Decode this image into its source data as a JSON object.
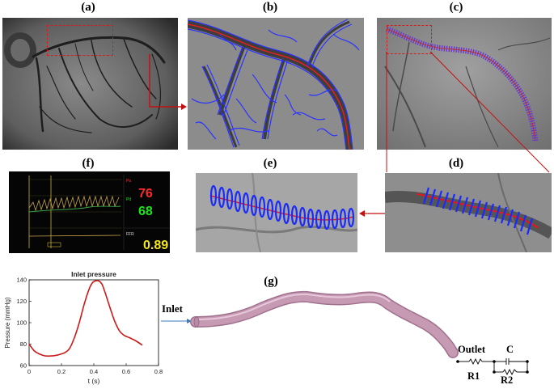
{
  "panels": {
    "a": "(a)",
    "b": "(b)",
    "c": "(c)",
    "d": "(d)",
    "e": "(e)",
    "f": "(f)",
    "g": "(g)"
  },
  "monitor": {
    "pa_label": "Pa",
    "pa_value": "76",
    "pd_label": "Pd",
    "pd_value": "68",
    "ffr_label": "FFR",
    "ffr_value": "0.89",
    "pa_color": "#ff2a2a",
    "pd_color": "#19e619",
    "ffr_color": "#f5e51a"
  },
  "model": {
    "inlet_label": "Inlet",
    "outlet_label": "Outlet",
    "c_label": "C",
    "r1_label": "R1",
    "r2_label": "R2",
    "vessel_color": "#c79ab4"
  },
  "chart_data": {
    "type": "line",
    "title": "Inlet pressure",
    "xlabel": "t (s)",
    "ylabel": "Pressure (mmHg)",
    "xlim": [
      0,
      0.8
    ],
    "ylim": [
      60,
      140
    ],
    "xticks": [
      0,
      0.2,
      0.4,
      0.6,
      0.8
    ],
    "yticks": [
      60,
      80,
      100,
      120,
      140
    ],
    "series": [
      {
        "color": "#cc1a1a",
        "x": [
          0,
          0.03,
          0.06,
          0.1,
          0.14,
          0.18,
          0.22,
          0.25,
          0.28,
          0.31,
          0.34,
          0.37,
          0.39,
          0.41,
          0.43,
          0.45,
          0.47,
          0.5,
          0.53,
          0.56,
          0.59,
          0.62,
          0.66,
          0.7
        ],
        "y": [
          80,
          74,
          71,
          69,
          69,
          70,
          72,
          76,
          86,
          100,
          117,
          131,
          137,
          139,
          139,
          136,
          128,
          114,
          101,
          92,
          88,
          86,
          83,
          79
        ]
      }
    ]
  }
}
